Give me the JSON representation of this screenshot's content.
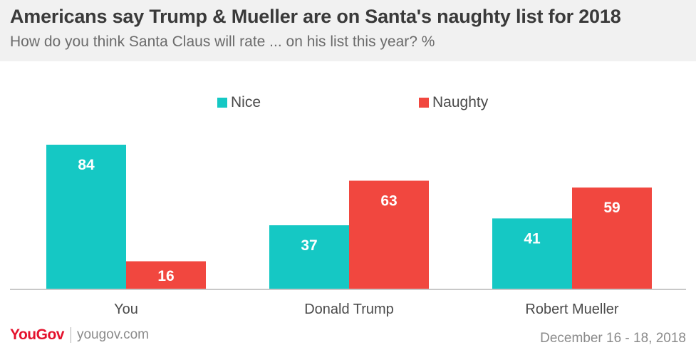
{
  "chart_data": {
    "type": "bar",
    "title": "Americans say Trump & Mueller are on Santa's naughty list for 2018",
    "subtitle": "How do you think Santa Claus will rate ... on his list this year? %",
    "categories": [
      "You",
      "Donald Trump",
      "Robert Mueller"
    ],
    "series": [
      {
        "name": "Nice",
        "color": "#15c8c4",
        "values": [
          84,
          37,
          41
        ]
      },
      {
        "name": "Naughty",
        "color": "#f1473f",
        "values": [
          16,
          63,
          59
        ]
      }
    ],
    "ylim": [
      0,
      84
    ],
    "xlabel": "",
    "ylabel": "",
    "legend_position": "top-center",
    "grid": false
  },
  "footer": {
    "brand": "YouGov",
    "site": "yougov.com",
    "date": "December 16 - 18, 2018"
  }
}
